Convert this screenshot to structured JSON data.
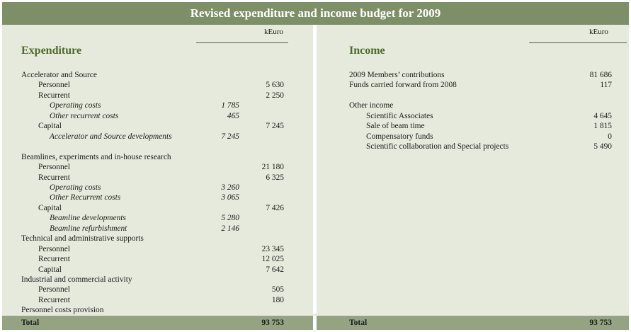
{
  "title": "Revised expenditure and income budget for 2009",
  "expenditure": {
    "unit": "kEuro",
    "heading": "Expenditure",
    "rows": [
      {
        "label": "Accelerator and Source",
        "level": 0,
        "sub": "",
        "value": ""
      },
      {
        "label": "Personnel",
        "level": 1,
        "sub": "",
        "value": "5 630"
      },
      {
        "label": "Recurrent",
        "level": 1,
        "sub": "",
        "value": "2 250"
      },
      {
        "label": "Operating costs",
        "level": 2,
        "sub": "1 785",
        "value": ""
      },
      {
        "label": "Other recurrent costs",
        "level": 2,
        "sub": "465",
        "value": ""
      },
      {
        "label": "Capital",
        "level": 1,
        "sub": "",
        "value": "7 245"
      },
      {
        "label": "Accelerator and Source developments",
        "level": 2,
        "sub": "7 245",
        "value": ""
      },
      {
        "label": "",
        "level": 0,
        "sub": "",
        "value": ""
      },
      {
        "label": "Beamlines, experiments and in-house research",
        "level": 0,
        "sub": "",
        "value": ""
      },
      {
        "label": "Personnel",
        "level": 1,
        "sub": "",
        "value": "21 180"
      },
      {
        "label": "Recurrent",
        "level": 1,
        "sub": "",
        "value": "6 325"
      },
      {
        "label": "Operating costs",
        "level": 2,
        "sub": "3 260",
        "value": ""
      },
      {
        "label": "Other Recurrent costs",
        "level": 2,
        "sub": "3 065",
        "value": ""
      },
      {
        "label": "Capital",
        "level": 1,
        "sub": "",
        "value": "7 426"
      },
      {
        "label": "Beamline developments",
        "level": 2,
        "sub": "5 280",
        "value": ""
      },
      {
        "label": "Beamline refurbishment",
        "level": 2,
        "sub": "2 146",
        "value": ""
      },
      {
        "label": "Technical and administrative supports",
        "level": 0,
        "sub": "",
        "value": ""
      },
      {
        "label": "Personnel",
        "level": 1,
        "sub": "",
        "value": "23 345"
      },
      {
        "label": "Recurrent",
        "level": 1,
        "sub": "",
        "value": "12 025"
      },
      {
        "label": "Capital",
        "level": 1,
        "sub": "",
        "value": "7 642"
      },
      {
        "label": "Industrial and commercial activity",
        "level": 0,
        "sub": "",
        "value": ""
      },
      {
        "label": "Personnel",
        "level": 1,
        "sub": "",
        "value": "505"
      },
      {
        "label": "Recurrent",
        "level": 1,
        "sub": "",
        "value": "180"
      },
      {
        "label": "Personnel costs provision",
        "level": 0,
        "sub": "",
        "value": ""
      }
    ],
    "total_label": "Total",
    "total_value": "93 753"
  },
  "income": {
    "unit": "kEuro",
    "heading": "Income",
    "rows": [
      {
        "label": "2009 Members’ contributions",
        "level": 0,
        "value": "81 686"
      },
      {
        "label": "Funds carried forward from 2008",
        "level": 0,
        "value": "117"
      },
      {
        "label": "",
        "level": 0,
        "value": ""
      },
      {
        "label": "Other income",
        "level": 0,
        "value": ""
      },
      {
        "label": "Scientific Associates",
        "level": 1,
        "value": "4 645"
      },
      {
        "label": "Sale of beam time",
        "level": 1,
        "value": "1 815"
      },
      {
        "label": "Compensatory funds",
        "level": 1,
        "value": "0"
      },
      {
        "label": "Scientific collaboration and Special projects",
        "level": 1,
        "value": "5 490"
      }
    ],
    "total_label": "Total",
    "total_value": "93 753"
  }
}
